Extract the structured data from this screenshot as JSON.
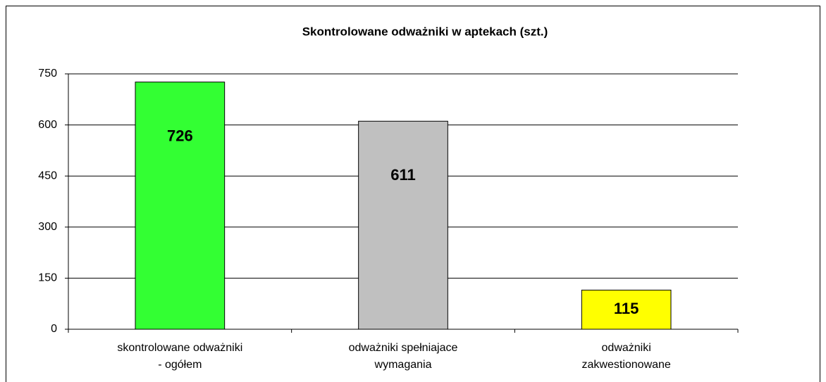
{
  "chart_data": {
    "type": "bar",
    "title": "Skontrolowane odważniki w aptekach (szt.)",
    "categories": [
      "skontrolowane odważniki\n- ogółem",
      "odważniki spełniajace\nwymagania",
      "odważniki\nzakwestionowane"
    ],
    "values": [
      726,
      611,
      115
    ],
    "colors": [
      "#33ff33",
      "#c0c0c0",
      "#ffff00"
    ],
    "ylim": [
      0,
      750
    ],
    "yticks": [
      0,
      150,
      300,
      450,
      600,
      750
    ],
    "grid": true
  }
}
